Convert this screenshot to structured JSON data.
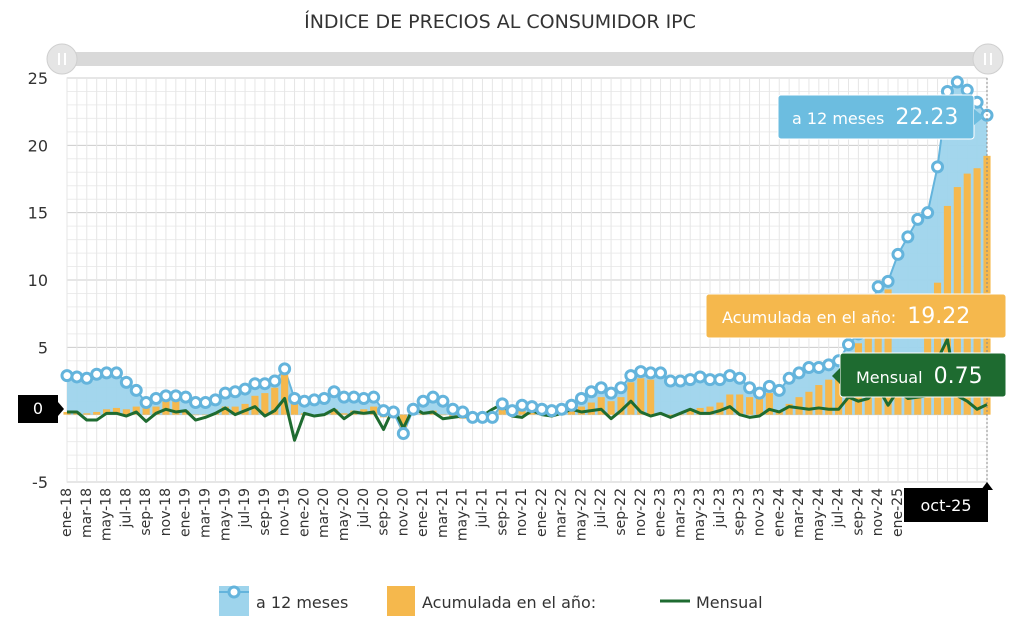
{
  "colors": {
    "area_fill": "#9ed4ec",
    "area_line": "#64b4dc",
    "bar": "#f5b84d",
    "line": "#1e6b30",
    "tip_12": "#6cbde0",
    "tip_acum": "#f5b84d",
    "tip_mensual": "#1e6b30",
    "black_label": "#000000"
  },
  "chart_data": {
    "type": "line",
    "title": "ÍNDICE DE PRECIOS AL CONSUMIDOR IPC",
    "ylim": [
      -5,
      25
    ],
    "yticks": [
      "25",
      "20",
      "15",
      "10",
      "5",
      "0",
      "-5"
    ],
    "grid": true,
    "legend_position": "bottom",
    "x": [
      "ene-18",
      "feb-18",
      "mar-18",
      "abr-18",
      "may-18",
      "jun-18",
      "jul-18",
      "ago-18",
      "sep-18",
      "oct-18",
      "nov-18",
      "dic-18",
      "ene-19",
      "feb-19",
      "mar-19",
      "abr-19",
      "may-19",
      "jun-19",
      "jul-19",
      "ago-19",
      "sep-19",
      "oct-19",
      "nov-19",
      "dic-19",
      "ene-20",
      "feb-20",
      "mar-20",
      "abr-20",
      "may-20",
      "jun-20",
      "jul-20",
      "ago-20",
      "sep-20",
      "oct-20",
      "nov-20",
      "dic-20",
      "ene-21",
      "feb-21",
      "mar-21",
      "abr-21",
      "may-21",
      "jun-21",
      "jul-21",
      "ago-21",
      "sep-21",
      "oct-21",
      "nov-21",
      "dic-21",
      "ene-22",
      "feb-22",
      "mar-22",
      "abr-22",
      "may-22",
      "jun-22",
      "jul-22",
      "ago-22",
      "sep-22",
      "oct-22",
      "nov-22",
      "dic-22",
      "ene-23",
      "feb-23",
      "mar-23",
      "abr-23",
      "may-23",
      "jun-23",
      "jul-23",
      "ago-23",
      "sep-23",
      "oct-23",
      "nov-23",
      "dic-23",
      "ene-24",
      "feb-24",
      "mar-24",
      "abr-24",
      "may-24",
      "jun-24",
      "jul-24",
      "ago-24",
      "sep-24",
      "oct-24",
      "nov-24",
      "dic-24",
      "ene-25",
      "feb-25",
      "mar-25",
      "abr-25",
      "may-25",
      "jun-25",
      "jul-25",
      "ago-25",
      "sep-25",
      "oct-25"
    ],
    "xtick_labels": [
      "ene-18",
      "mar-18",
      "may-18",
      "jul-18",
      "sep-18",
      "nov-18",
      "ene-19",
      "mar-19",
      "may-19",
      "jul-19",
      "sep-19",
      "nov-19",
      "ene-20",
      "mar-20",
      "may-20",
      "jul-20",
      "sep-20",
      "nov-20",
      "ene-21",
      "mar-21",
      "may-21",
      "jul-21",
      "sep-21",
      "nov-21",
      "ene-22",
      "mar-22",
      "may-22",
      "jul-22",
      "sep-22",
      "nov-22",
      "ene-23",
      "mar-23",
      "may-23",
      "jul-23",
      "sep-23",
      "nov-23",
      "ene-24",
      "mar-24",
      "may-24",
      "jul-24",
      "sep-24",
      "nov-24",
      "ene-25",
      "mar",
      "may",
      "jul",
      "sep"
    ],
    "series": [
      {
        "name": "a 12 meses",
        "type": "area",
        "values": [
          2.9,
          2.8,
          2.7,
          3.0,
          3.1,
          3.1,
          2.4,
          1.8,
          0.9,
          1.2,
          1.4,
          1.4,
          1.3,
          0.9,
          0.9,
          1.1,
          1.6,
          1.7,
          1.9,
          2.3,
          2.3,
          2.5,
          3.4,
          1.2,
          1.0,
          1.1,
          1.2,
          1.7,
          1.3,
          1.3,
          1.2,
          1.3,
          0.3,
          0.2,
          -1.4,
          0.4,
          1.0,
          1.3,
          1.0,
          0.4,
          0.2,
          -0.2,
          -0.2,
          -0.2,
          0.8,
          0.3,
          0.7,
          0.6,
          0.4,
          0.3,
          0.4,
          0.7,
          1.2,
          1.7,
          2.0,
          1.6,
          2.0,
          2.9,
          3.2,
          3.1,
          3.1,
          2.5,
          2.5,
          2.6,
          2.8,
          2.6,
          2.6,
          2.9,
          2.7,
          2.0,
          1.6,
          2.1,
          1.8,
          2.7,
          3.1,
          3.5,
          3.5,
          3.7,
          4.0,
          5.2,
          6.0,
          7.5,
          9.5,
          9.9,
          11.9,
          13.2,
          14.5,
          15.0,
          18.4,
          24.0,
          24.7,
          24.1,
          23.2,
          22.23
        ]
      },
      {
        "name": "Acumulada en el año:",
        "type": "bar",
        "values": [
          0.2,
          0.2,
          0.1,
          0.2,
          0.4,
          0.5,
          0.4,
          0.6,
          0.5,
          0.6,
          1.0,
          1.1,
          0.3,
          0.0,
          0.0,
          0.1,
          0.6,
          0.6,
          0.8,
          1.4,
          1.6,
          2.0,
          3.1,
          1.2,
          0.1,
          0.0,
          0.0,
          0.4,
          0.1,
          0.3,
          0.4,
          0.6,
          -0.2,
          0.1,
          -0.9,
          0.4,
          0.1,
          0.3,
          0.0,
          -0.2,
          -0.3,
          -0.5,
          -0.6,
          -0.2,
          0.6,
          0.5,
          0.3,
          0.6,
          0.0,
          -0.1,
          0.0,
          0.4,
          0.6,
          0.9,
          1.3,
          1.0,
          1.3,
          2.4,
          2.7,
          2.6,
          0.1,
          -0.1,
          0.0,
          0.4,
          0.5,
          0.6,
          0.9,
          1.5,
          1.5,
          1.3,
          1.2,
          1.6,
          0.2,
          0.8,
          1.3,
          1.7,
          2.2,
          2.6,
          3.0,
          4.3,
          5.3,
          6.5,
          8.6,
          9.3,
          1.8,
          3.0,
          4.3,
          5.7,
          9.8,
          15.5,
          16.9,
          17.9,
          18.3,
          19.22
        ]
      },
      {
        "name": "Mensual",
        "type": "line",
        "values": [
          0.2,
          0.2,
          -0.4,
          -0.4,
          0.1,
          0.1,
          -0.1,
          0.2,
          -0.5,
          0.1,
          0.4,
          0.2,
          0.3,
          -0.4,
          -0.2,
          0.1,
          0.5,
          0.0,
          0.3,
          0.6,
          -0.1,
          0.3,
          1.2,
          -1.9,
          0.1,
          -0.1,
          0.0,
          0.4,
          -0.3,
          0.2,
          0.1,
          0.2,
          -1.1,
          0.5,
          -1.0,
          0.5,
          0.1,
          0.2,
          -0.3,
          -0.2,
          -0.1,
          -0.2,
          -0.1,
          0.4,
          0.8,
          -0.1,
          -0.2,
          0.3,
          0.0,
          -0.1,
          0.1,
          0.4,
          0.2,
          0.3,
          0.4,
          -0.3,
          0.3,
          1.0,
          0.2,
          -0.1,
          0.1,
          -0.2,
          0.1,
          0.4,
          0.1,
          0.1,
          0.3,
          0.6,
          0.0,
          -0.2,
          -0.1,
          0.4,
          0.2,
          0.6,
          0.5,
          0.4,
          0.5,
          0.4,
          0.4,
          1.3,
          1.0,
          1.2,
          2.0,
          0.7,
          1.8,
          1.2,
          1.3,
          1.4,
          4.1,
          5.6,
          1.4,
          1.0,
          0.4,
          0.75
        ]
      }
    ]
  },
  "tooltips": {
    "a12": {
      "label": "a 12 meses",
      "value": "22.23"
    },
    "acum": {
      "label": "Acumulada en el año:",
      "value": "19.22"
    },
    "mensual": {
      "label": "Mensual",
      "value": "0.75"
    },
    "y_crosshair": "0",
    "x_crosshair": "oct-25"
  },
  "icons": {
    "scroll_left": "scrollbar-handle-left-icon",
    "scroll_right": "scrollbar-handle-right-icon"
  }
}
